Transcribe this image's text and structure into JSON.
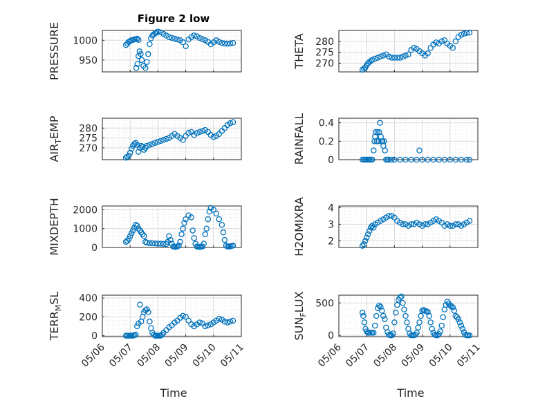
{
  "figure": {
    "title": "Figure 2 low",
    "xlabel": "Time"
  },
  "chart_data": [
    {
      "type": "scatter",
      "title": "Figure 2 low",
      "ylabel": "PRESSURE",
      "ylim": [
        920,
        1025
      ],
      "yticks": [
        950,
        1000
      ],
      "xlim": [
        0,
        5
      ],
      "xticklabels": [],
      "grid": true,
      "series": [
        {
          "name": "",
          "color": "#0072BD",
          "x": [
            0.85,
            0.9,
            0.95,
            1.0,
            1.05,
            1.1,
            1.15,
            1.2,
            1.25,
            1.3,
            1.22,
            1.26,
            1.3,
            1.34,
            1.38,
            1.42,
            1.48,
            1.55,
            1.6,
            1.65,
            1.7,
            1.75,
            1.8,
            1.85,
            1.9,
            1.95,
            2.0,
            2.1,
            2.2,
            2.3,
            2.4,
            2.5,
            2.6,
            2.7,
            2.8,
            2.9,
            3.0,
            3.1,
            3.2,
            3.3,
            3.4,
            3.5,
            3.6,
            3.7,
            3.8,
            3.9,
            4.0,
            4.1,
            4.2,
            4.3,
            4.4,
            4.5,
            4.6,
            4.7
          ],
          "y": [
            988,
            992,
            996,
            998,
            1000,
            1001,
            1002,
            1003,
            1004,
            1001,
            930,
            940,
            960,
            972,
            965,
            950,
            935,
            930,
            945,
            965,
            990,
            1005,
            1012,
            1015,
            1018,
            1020,
            1022,
            1020,
            1016,
            1012,
            1008,
            1006,
            1004,
            1002,
            1000,
            995,
            985,
            1002,
            1008,
            1012,
            1010,
            1006,
            1003,
            1000,
            996,
            990,
            995,
            1000,
            996,
            993,
            992,
            991,
            992,
            993
          ]
        }
      ]
    },
    {
      "type": "scatter",
      "title": "",
      "ylabel": "THETA",
      "ylim": [
        266,
        285
      ],
      "yticks": [
        270,
        275,
        280
      ],
      "xlim": [
        0,
        5
      ],
      "xticklabels": [],
      "grid": true,
      "series": [
        {
          "name": "",
          "color": "#0072BD",
          "x": [
            0.85,
            0.9,
            0.95,
            1.0,
            1.05,
            1.1,
            1.15,
            1.2,
            1.3,
            1.4,
            1.5,
            1.6,
            1.7,
            1.8,
            1.9,
            2.0,
            2.1,
            2.2,
            2.3,
            2.4,
            2.5,
            2.6,
            2.7,
            2.8,
            2.9,
            3.0,
            3.1,
            3.2,
            3.3,
            3.4,
            3.5,
            3.6,
            3.7,
            3.8,
            3.9,
            4.0,
            4.1,
            4.2,
            4.3,
            4.4,
            4.5,
            4.6,
            4.7
          ],
          "y": [
            267,
            267.5,
            268,
            269,
            270,
            270.5,
            271,
            271.5,
            272,
            272.5,
            273,
            273.5,
            274,
            273,
            272.5,
            272.5,
            272.5,
            272.5,
            273,
            273.5,
            274,
            276,
            277,
            276.5,
            275.5,
            274.5,
            273.5,
            274.5,
            277,
            278.5,
            279.5,
            279,
            280,
            280.5,
            279,
            278,
            277,
            280,
            282,
            283,
            283.5,
            283.8,
            284
          ]
        }
      ]
    },
    {
      "type": "scatter",
      "title": "",
      "ylabel": "AIR_TEMP",
      "ylim": [
        264,
        285
      ],
      "yticks": [
        270,
        275,
        280
      ],
      "xlim": [
        0,
        5
      ],
      "xticklabels": [],
      "grid": true,
      "series": [
        {
          "name": "",
          "color": "#0072BD",
          "x": [
            0.85,
            0.9,
            0.95,
            1.0,
            1.05,
            1.1,
            1.15,
            1.2,
            1.25,
            1.3,
            1.35,
            1.4,
            1.45,
            1.5,
            1.55,
            1.6,
            1.7,
            1.8,
            1.9,
            2.0,
            2.1,
            2.2,
            2.3,
            2.4,
            2.5,
            2.6,
            2.7,
            2.8,
            2.9,
            3.0,
            3.1,
            3.2,
            3.3,
            3.4,
            3.5,
            3.6,
            3.7,
            3.8,
            3.9,
            4.0,
            4.1,
            4.2,
            4.3,
            4.4,
            4.5,
            4.6,
            4.7
          ],
          "y": [
            265,
            265.5,
            266,
            267.5,
            269.5,
            271,
            272,
            272.5,
            271.5,
            268,
            270,
            271,
            270.5,
            269,
            270,
            271,
            271.5,
            272,
            272.5,
            273,
            273.5,
            274,
            274.5,
            275,
            276,
            277,
            276,
            275,
            274,
            276,
            277.5,
            278,
            276.5,
            277.5,
            278,
            278.5,
            279,
            278,
            276.5,
            275.5,
            276,
            277,
            278.5,
            280,
            281.5,
            282.5,
            283
          ]
        }
      ]
    },
    {
      "type": "scatter",
      "title": "",
      "ylabel": "RAINFALL",
      "ylim": [
        0,
        0.45
      ],
      "yticks": [
        0,
        0.2,
        0.4
      ],
      "xlim": [
        0,
        5
      ],
      "xticklabels": [],
      "grid": true,
      "series": [
        {
          "name": "",
          "color": "#0072BD",
          "x": [
            0.85,
            0.9,
            0.95,
            1.0,
            1.05,
            1.1,
            1.15,
            1.2,
            1.25,
            1.28,
            1.3,
            1.33,
            1.36,
            1.39,
            1.42,
            1.45,
            1.48,
            1.51,
            1.54,
            1.57,
            1.6,
            1.63,
            1.66,
            1.7,
            1.75,
            1.8,
            1.9,
            2.0,
            2.2,
            2.4,
            2.6,
            2.8,
            2.9,
            3.0,
            3.2,
            3.4,
            3.6,
            3.8,
            4.0,
            4.2,
            4.4,
            4.6,
            4.7
          ],
          "y": [
            0,
            0,
            0,
            0,
            0,
            0,
            0,
            0,
            0.1,
            0.2,
            0.25,
            0.3,
            0.2,
            0.3,
            0.2,
            0.3,
            0.4,
            0.25,
            0.2,
            0.2,
            0.15,
            0.2,
            0.1,
            0,
            0,
            0,
            0,
            0,
            0,
            0,
            0,
            0,
            0.1,
            0,
            0,
            0,
            0,
            0,
            0,
            0,
            0,
            0,
            0
          ]
        }
      ]
    },
    {
      "type": "scatter",
      "title": "",
      "ylabel": "MIXDEPTH",
      "ylim": [
        0,
        2200
      ],
      "yticks": [
        0,
        1000,
        2000
      ],
      "xlim": [
        0,
        5
      ],
      "xticklabels": [],
      "grid": true,
      "series": [
        {
          "name": "",
          "color": "#0072BD",
          "x": [
            0.85,
            0.9,
            0.95,
            1.0,
            1.05,
            1.1,
            1.15,
            1.2,
            1.25,
            1.3,
            1.35,
            1.4,
            1.45,
            1.5,
            1.55,
            1.6,
            1.7,
            1.8,
            1.9,
            2.0,
            2.1,
            2.2,
            2.3,
            2.35,
            2.4,
            2.45,
            2.5,
            2.55,
            2.6,
            2.65,
            2.7,
            2.75,
            2.8,
            2.85,
            2.9,
            2.95,
            3.0,
            3.1,
            3.2,
            3.25,
            3.3,
            3.35,
            3.4,
            3.45,
            3.5,
            3.55,
            3.6,
            3.65,
            3.7,
            3.75,
            3.8,
            3.85,
            3.9,
            4.0,
            4.1,
            4.2,
            4.3,
            4.35,
            4.4,
            4.45,
            4.5,
            4.55,
            4.6,
            4.65,
            4.7
          ],
          "y": [
            300,
            350,
            450,
            600,
            750,
            900,
            1050,
            1200,
            1150,
            1000,
            900,
            800,
            700,
            600,
            300,
            250,
            230,
            220,
            210,
            200,
            200,
            190,
            180,
            300,
            600,
            400,
            200,
            50,
            30,
            30,
            50,
            100,
            300,
            700,
            1000,
            1300,
            1500,
            1700,
            1600,
            900,
            500,
            200,
            50,
            30,
            30,
            40,
            50,
            200,
            700,
            1000,
            1500,
            1900,
            2100,
            2000,
            1800,
            1500,
            1200,
            800,
            400,
            100,
            50,
            50,
            60,
            80,
            100
          ]
        }
      ]
    },
    {
      "type": "scatter",
      "title": "",
      "ylabel": "H2OMIXRA",
      "ylim": [
        1.6,
        4.1
      ],
      "yticks": [
        2,
        3,
        4
      ],
      "xlim": [
        0,
        5
      ],
      "xticklabels": [],
      "grid": true,
      "series": [
        {
          "name": "",
          "color": "#0072BD",
          "x": [
            0.85,
            0.9,
            0.95,
            1.0,
            1.05,
            1.1,
            1.15,
            1.2,
            1.25,
            1.3,
            1.4,
            1.5,
            1.6,
            1.7,
            1.8,
            1.9,
            2.0,
            2.1,
            2.2,
            2.3,
            2.4,
            2.5,
            2.6,
            2.7,
            2.8,
            2.9,
            3.0,
            3.1,
            3.2,
            3.3,
            3.4,
            3.5,
            3.6,
            3.7,
            3.8,
            3.9,
            4.0,
            4.1,
            4.2,
            4.3,
            4.4,
            4.5,
            4.6,
            4.7
          ],
          "y": [
            1.7,
            1.8,
            2.0,
            2.2,
            2.4,
            2.6,
            2.8,
            2.9,
            2.8,
            3.0,
            3.1,
            3.2,
            3.3,
            3.4,
            3.5,
            3.5,
            3.4,
            3.2,
            3.1,
            3.0,
            3.0,
            2.9,
            3.0,
            3.0,
            3.1,
            3.0,
            2.9,
            3.0,
            3.0,
            3.1,
            3.2,
            3.3,
            3.2,
            3.1,
            2.9,
            3.0,
            2.9,
            2.9,
            3.0,
            3.0,
            2.9,
            3.0,
            3.1,
            3.2
          ]
        }
      ]
    },
    {
      "type": "scatter",
      "title": "",
      "ylabel": "TERR_MSL",
      "ylim": [
        -10,
        430
      ],
      "yticks": [
        0,
        200,
        400
      ],
      "xlim": [
        0,
        5
      ],
      "xticklabels": [
        "05/06",
        "05/07",
        "05/08",
        "05/09",
        "05/10",
        "05/11"
      ],
      "xlabel": "Time",
      "grid": true,
      "series": [
        {
          "name": "",
          "color": "#0072BD",
          "x": [
            0.85,
            0.9,
            0.95,
            1.0,
            1.05,
            1.1,
            1.15,
            1.2,
            1.25,
            1.3,
            1.35,
            1.4,
            1.45,
            1.5,
            1.55,
            1.6,
            1.65,
            1.7,
            1.75,
            1.8,
            1.85,
            1.9,
            1.95,
            2.0,
            2.05,
            2.1,
            2.15,
            2.2,
            2.3,
            2.4,
            2.5,
            2.6,
            2.7,
            2.8,
            2.9,
            3.0,
            3.1,
            3.2,
            3.3,
            3.4,
            3.5,
            3.6,
            3.7,
            3.8,
            3.9,
            4.0,
            4.1,
            4.2,
            4.3,
            4.4,
            4.5,
            4.6,
            4.7
          ],
          "y": [
            0,
            0,
            0,
            0,
            0,
            0,
            5,
            10,
            100,
            130,
            330,
            150,
            200,
            250,
            270,
            280,
            250,
            150,
            80,
            30,
            10,
            0,
            0,
            0,
            0,
            0,
            10,
            30,
            60,
            90,
            110,
            140,
            160,
            190,
            210,
            200,
            160,
            120,
            100,
            120,
            140,
            130,
            100,
            110,
            120,
            140,
            160,
            180,
            170,
            150,
            140,
            150,
            160
          ]
        }
      ]
    },
    {
      "type": "scatter",
      "title": "",
      "ylabel": "SUN_FLUX",
      "ylim": [
        -20,
        620
      ],
      "yticks": [
        0,
        500
      ],
      "xlim": [
        0,
        5
      ],
      "xticklabels": [
        "05/06",
        "05/07",
        "05/08",
        "05/09",
        "05/10",
        "05/11"
      ],
      "xlabel": "Time",
      "grid": true,
      "series": [
        {
          "name": "",
          "color": "#0072BD",
          "x": [
            0.85,
            0.88,
            0.92,
            0.96,
            1.0,
            1.05,
            1.1,
            1.15,
            1.2,
            1.25,
            1.3,
            1.35,
            1.4,
            1.45,
            1.5,
            1.55,
            1.6,
            1.65,
            1.7,
            1.75,
            1.8,
            1.85,
            1.9,
            1.95,
            2.0,
            2.05,
            2.1,
            2.15,
            2.2,
            2.25,
            2.3,
            2.35,
            2.4,
            2.45,
            2.5,
            2.55,
            2.6,
            2.65,
            2.7,
            2.75,
            2.8,
            2.85,
            2.9,
            2.95,
            3.0,
            3.05,
            3.1,
            3.15,
            3.2,
            3.25,
            3.3,
            3.35,
            3.4,
            3.45,
            3.5,
            3.55,
            3.6,
            3.65,
            3.7,
            3.75,
            3.8,
            3.85,
            3.9,
            3.95,
            4.0,
            4.05,
            4.1,
            4.15,
            4.2,
            4.25,
            4.3,
            4.35,
            4.4,
            4.45,
            4.5,
            4.55,
            4.6,
            4.65,
            4.7
          ],
          "y": [
            350,
            300,
            200,
            100,
            60,
            40,
            40,
            40,
            40,
            40,
            150,
            300,
            420,
            460,
            440,
            380,
            300,
            250,
            120,
            50,
            10,
            0,
            0,
            30,
            200,
            350,
            470,
            550,
            580,
            600,
            500,
            400,
            300,
            200,
            100,
            30,
            0,
            0,
            0,
            10,
            40,
            120,
            200,
            300,
            380,
            390,
            380,
            370,
            360,
            300,
            200,
            100,
            40,
            10,
            0,
            0,
            20,
            60,
            150,
            280,
            400,
            470,
            520,
            490,
            460,
            450,
            430,
            380,
            300,
            280,
            250,
            200,
            150,
            100,
            50,
            10,
            0,
            0,
            0
          ]
        }
      ]
    }
  ]
}
